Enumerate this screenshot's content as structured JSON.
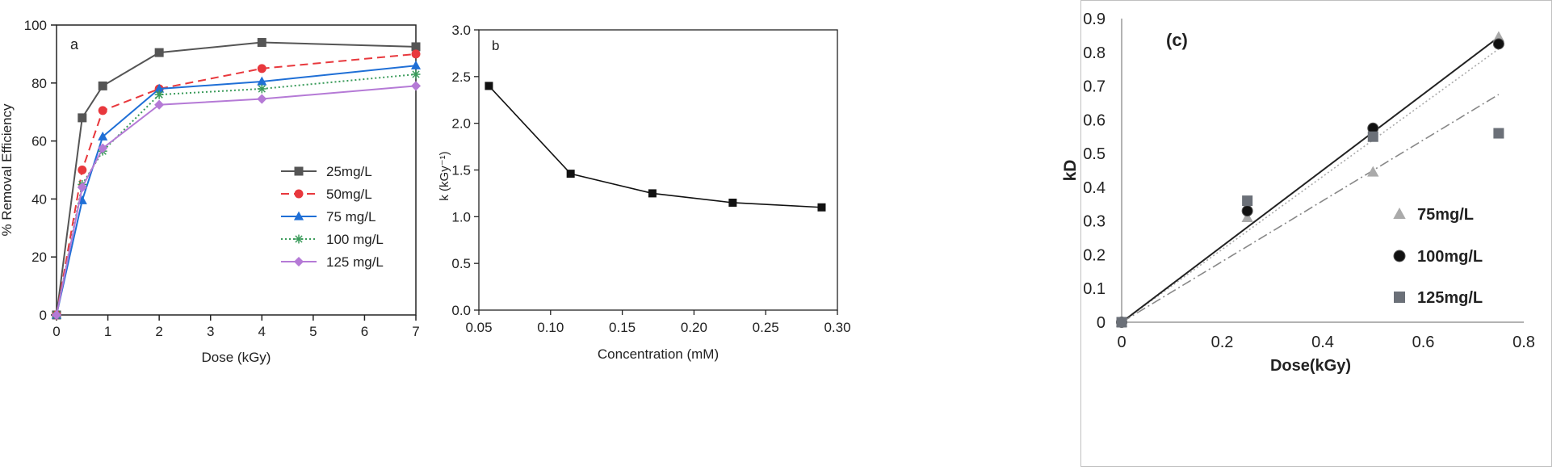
{
  "chart_data": [
    {
      "type": "line",
      "panel_label": "a",
      "xlabel": "Dose (kGy)",
      "ylabel": "% Removal Efficiency",
      "xlim": [
        0,
        7
      ],
      "ylim": [
        0,
        100
      ],
      "xticks": [
        0,
        1,
        2,
        3,
        4,
        5,
        6,
        7
      ],
      "yticks": [
        0,
        20,
        40,
        60,
        80,
        100
      ],
      "grid": false,
      "legend_position": "center-right",
      "x": [
        0,
        0.5,
        0.9,
        2,
        4,
        7
      ],
      "series": [
        {
          "name": "25mg/L",
          "values": [
            0,
            68,
            79,
            90.5,
            94,
            92.5
          ],
          "color": "#555555",
          "marker": "square",
          "line": "solid"
        },
        {
          "name": "50mg/L",
          "values": [
            0,
            50,
            70.5,
            78,
            85,
            90
          ],
          "color": "#e8383d",
          "marker": "circle",
          "line": "dashed"
        },
        {
          "name": "75 mg/L",
          "values": [
            0,
            39.5,
            61.5,
            78,
            80.5,
            86
          ],
          "color": "#1f6fd6",
          "marker": "triangle",
          "line": "solid"
        },
        {
          "name": "100 mg/L",
          "values": [
            0,
            45,
            56.5,
            76,
            78,
            83
          ],
          "color": "#3a9b5a",
          "marker": "star",
          "line": "dotted"
        },
        {
          "name": "125 mg/L",
          "values": [
            0,
            44,
            57.5,
            72.5,
            74.5,
            79
          ],
          "color": "#b57ad6",
          "marker": "diamond",
          "line": "solid"
        }
      ]
    },
    {
      "type": "line",
      "panel_label": "b",
      "xlabel": "Concentration (mM)",
      "ylabel": "k (kGy⁻¹)",
      "xlim": [
        0.05,
        0.3
      ],
      "ylim": [
        0,
        3.0
      ],
      "xticks": [
        "0.05",
        "0.10",
        "0.15",
        "0.20",
        "0.25",
        "0.30"
      ],
      "yticks": [
        "0.0",
        "0.5",
        "1.0",
        "1.5",
        "2.0",
        "2.5",
        "3.0"
      ],
      "grid": false,
      "x": [
        0.057,
        0.114,
        0.171,
        0.227,
        0.289
      ],
      "series": [
        {
          "values": [
            2.4,
            1.46,
            1.25,
            1.15,
            1.1
          ],
          "color": "#111111",
          "marker": "square"
        }
      ]
    },
    {
      "type": "scatter",
      "panel_label": "(c)",
      "xlabel": "Dose(kGy)",
      "ylabel": "kD",
      "xlim": [
        0,
        0.8
      ],
      "ylim": [
        0,
        0.9
      ],
      "xticks": [
        "0",
        "0.2",
        "0.4",
        "0.6",
        "0.8"
      ],
      "yticks": [
        "0",
        "0.1",
        "0.2",
        "0.3",
        "0.4",
        "0.5",
        "0.6",
        "0.7",
        "0.8",
        "0.9"
      ],
      "grid": false,
      "legend_position": "right",
      "series": [
        {
          "name": "75mg/L",
          "x": [
            0,
            0.25,
            0.5,
            0.75
          ],
          "values": [
            0,
            0.31,
            0.445,
            0.845
          ],
          "color": "#aaaaaa",
          "marker": "triangle",
          "fit": [
            0,
            0,
            0.75,
            0.81
          ],
          "fit_style": "dotted",
          "fit_color": "#aaaaaa"
        },
        {
          "name": "100mg/L",
          "x": [
            0,
            0.25,
            0.5,
            0.75
          ],
          "values": [
            0,
            0.33,
            0.575,
            0.825
          ],
          "color": "#111111",
          "marker": "circle",
          "fit": [
            0,
            0,
            0.75,
            0.845
          ],
          "fit_style": "solid",
          "fit_color": "#222222"
        },
        {
          "name": "125mg/L",
          "x": [
            0,
            0.25,
            0.5,
            0.75
          ],
          "values": [
            0,
            0.36,
            0.55,
            0.56
          ],
          "color": "#6b7078",
          "marker": "square",
          "fit": [
            0,
            0,
            0.75,
            0.675
          ],
          "fit_style": "dashdot",
          "fit_color": "#888888"
        }
      ]
    }
  ]
}
